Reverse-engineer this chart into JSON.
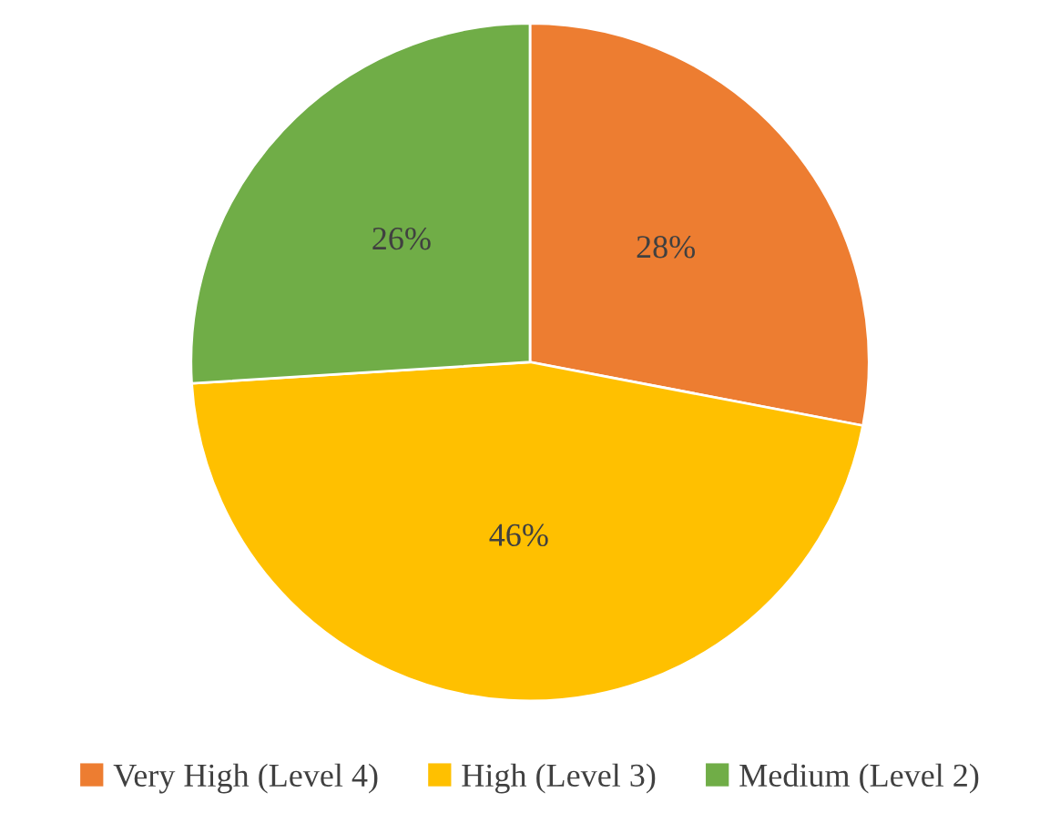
{
  "chart_data": {
    "type": "pie",
    "categories": [
      "Very High (Level 4)",
      "High (Level 3)",
      "Medium (Level 2)"
    ],
    "values": [
      28,
      46,
      26
    ],
    "colors": [
      "#ed7d31",
      "#ffc000",
      "#70ad47"
    ],
    "value_labels": [
      "28%",
      "46%",
      "26%"
    ],
    "legend": "bottom"
  }
}
